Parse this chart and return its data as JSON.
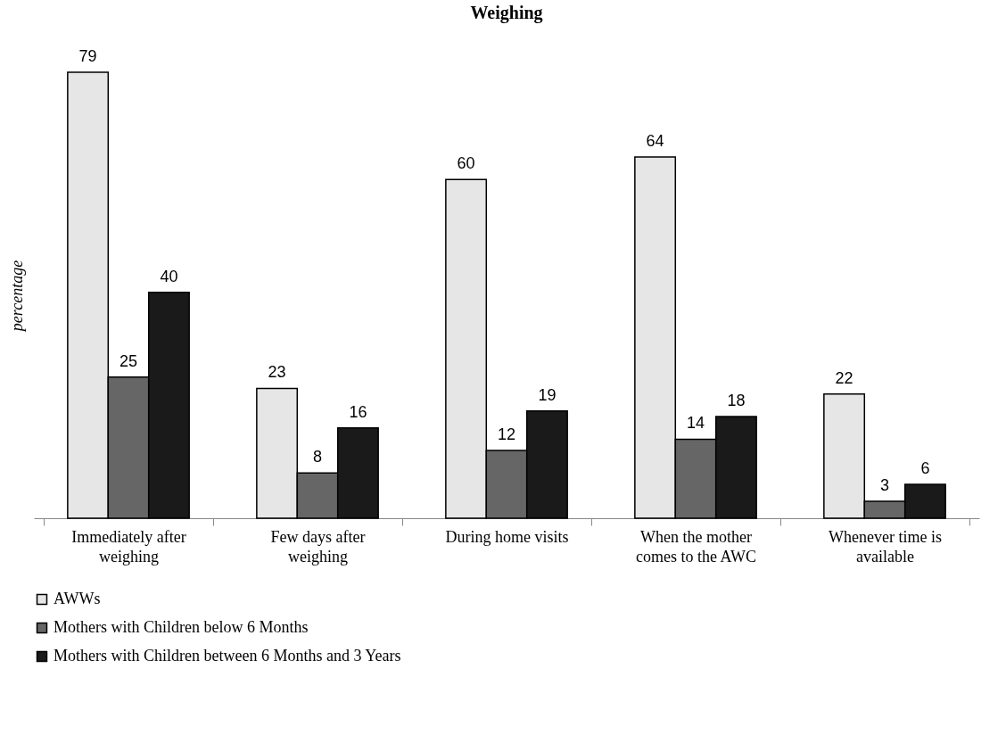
{
  "chart_data": {
    "type": "bar",
    "title": "Weighing",
    "ylabel": "percentage",
    "categories": [
      "Immediately after weighing",
      "Few days after weighing",
      "During home visits",
      "When the mother comes to the AWC",
      "Whenever time is available"
    ],
    "series": [
      {
        "name": "AWWs",
        "color": "#e6e6e6",
        "values": [
          79,
          23,
          60,
          64,
          22
        ]
      },
      {
        "name": "Mothers with Children below 6 Months",
        "color": "#666666",
        "values": [
          25,
          8,
          12,
          14,
          3
        ]
      },
      {
        "name": "Mothers with Children between 6 Months and 3 Years",
        "color": "#1a1a1a",
        "values": [
          40,
          16,
          19,
          18,
          6
        ]
      }
    ],
    "data_labels": true,
    "legend": "bottom",
    "grid": false
  }
}
